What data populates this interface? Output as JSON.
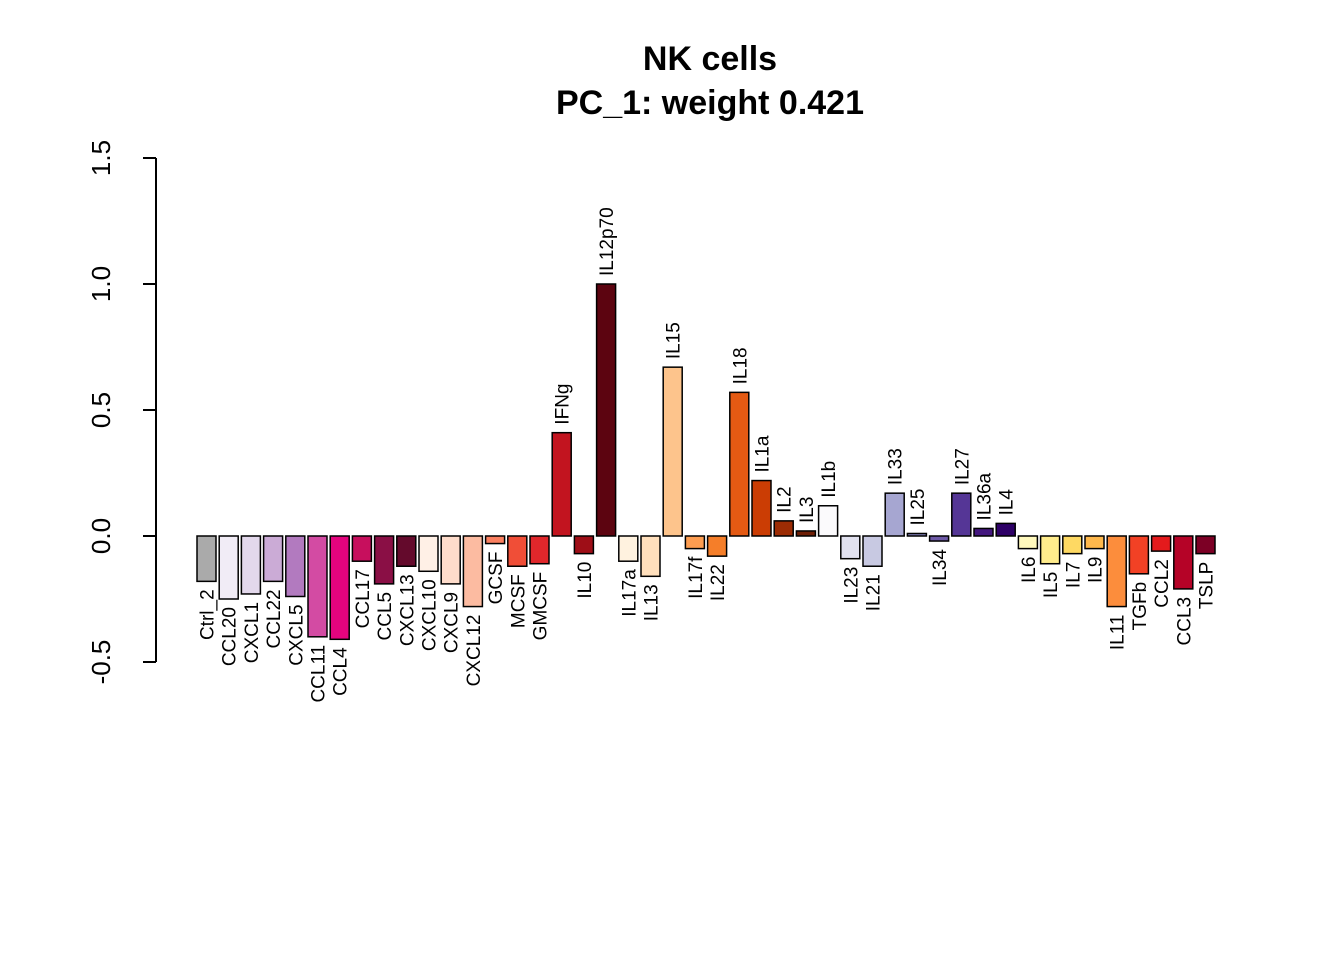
{
  "chart_data": {
    "type": "bar",
    "title": "NK cells",
    "subtitle": "PC_1: weight 0.421",
    "xlabel": "",
    "ylabel": "",
    "ylim": [
      -0.5,
      1.5
    ],
    "yticks": [
      "-0.5",
      "0.0",
      "0.5",
      "1.0",
      "1.5"
    ],
    "ytick_values": [
      -0.5,
      0.0,
      0.5,
      1.0,
      1.5
    ],
    "grid": false,
    "legend": "none",
    "categories": [
      "Ctrl_2",
      "CCL20",
      "CXCL1",
      "CCL22",
      "CXCL5",
      "CCL11",
      "CCL4",
      "CCL17",
      "CCL5",
      "CXCL13",
      "CXCL10",
      "CXCL9",
      "CXCL12",
      "GCSF",
      "MCSF",
      "GMCSF",
      "IFNg",
      "IL10",
      "IL12p70",
      "IL17a",
      "IL13",
      "IL15",
      "IL17f",
      "IL22",
      "IL18",
      "IL1a",
      "IL2",
      "IL3",
      "IL1b",
      "IL23",
      "IL21",
      "IL33",
      "IL25",
      "IL34",
      "IL27",
      "IL36a",
      "IL4",
      "IL6",
      "IL5",
      "IL7",
      "IL9",
      "IL11",
      "TGFb",
      "CCL2",
      "CCL3",
      "TSLP"
    ],
    "values": [
      -0.18,
      -0.25,
      -0.23,
      -0.18,
      -0.24,
      -0.4,
      -0.41,
      -0.1,
      -0.19,
      -0.12,
      -0.14,
      -0.19,
      -0.28,
      -0.03,
      -0.12,
      -0.11,
      0.41,
      -0.07,
      1.0,
      -0.1,
      -0.16,
      0.67,
      -0.05,
      -0.08,
      0.57,
      0.22,
      0.06,
      0.02,
      0.12,
      -0.09,
      -0.12,
      0.17,
      0.01,
      -0.02,
      0.17,
      0.03,
      0.05,
      -0.05,
      -0.11,
      -0.07,
      -0.05,
      -0.28,
      -0.15,
      -0.06,
      -0.21,
      -0.07
    ],
    "colors": [
      "#AAAAAA",
      "#F1ECF6",
      "#E3D8EC",
      "#CBABD6",
      "#B27ABF",
      "#D34BA3",
      "#E4047E",
      "#C70F5D",
      "#8A0F45",
      "#640A2C",
      "#FFF0E6",
      "#FEDCCB",
      "#FCBBA1",
      "#FB8060",
      "#F04E37",
      "#E0272B",
      "#C2141F",
      "#9E0E17",
      "#5C0410",
      "#FFF2DF",
      "#FFDFBC",
      "#FDC48C",
      "#FD9D51",
      "#F57E29",
      "#E45A13",
      "#CB3D04",
      "#9C2C04",
      "#6E1E05",
      "#FBFAFC",
      "#E1E1EF",
      "#C8C9E2",
      "#A6A6D1",
      "#8583BD",
      "#6D59A6",
      "#553696",
      "#44177F",
      "#2E0067",
      "#FFF9BD",
      "#FFEC8C",
      "#FED963",
      "#FEB84C",
      "#FC8D3C",
      "#F24125",
      "#E41A1C",
      "#B50327",
      "#7C0025"
    ]
  }
}
